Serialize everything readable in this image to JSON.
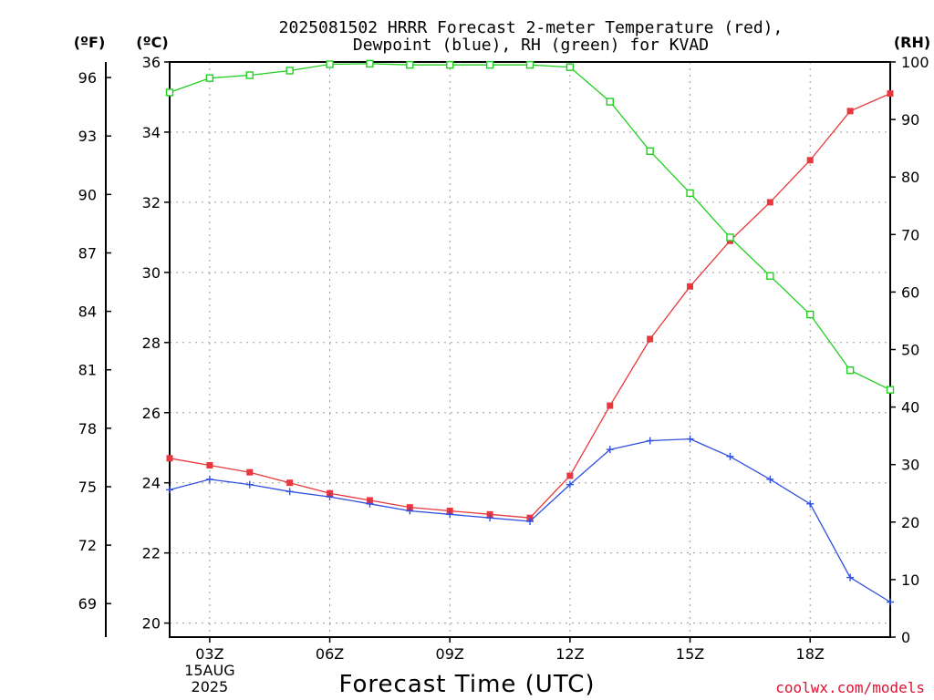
{
  "chart_data": {
    "type": "line",
    "title_line1": "2025081502 HRRR Forecast 2-meter Temperature (red),",
    "title_line2": "Dewpoint (blue), RH (green) for KVAD",
    "xlabel": "Forecast Time (UTC)",
    "credit": "coolwx.com/models",
    "units": {
      "fahrenheit": "(ºF)",
      "celsius": "(ºC)",
      "rh": "(RH)"
    },
    "x_hours": [
      2,
      3,
      4,
      5,
      6,
      7,
      8,
      9,
      10,
      11,
      12,
      13,
      14,
      15,
      16,
      17,
      18,
      19,
      20
    ],
    "x_ticks": [
      {
        "hour": 3,
        "label": "03Z",
        "sub1": "15AUG",
        "sub2": "2025"
      },
      {
        "hour": 6,
        "label": "06Z"
      },
      {
        "hour": 9,
        "label": "09Z"
      },
      {
        "hour": 12,
        "label": "12Z"
      },
      {
        "hour": 15,
        "label": "15Z"
      },
      {
        "hour": 18,
        "label": "18Z"
      }
    ],
    "xlim": [
      2,
      20
    ],
    "celsius_ticks": [
      "20",
      "22",
      "24",
      "26",
      "28",
      "30",
      "32",
      "34",
      "36"
    ],
    "celsius_range": [
      19.6,
      36
    ],
    "fahrenheit_ticks": [
      "69",
      "72",
      "75",
      "78",
      "81",
      "84",
      "87",
      "90",
      "93",
      "96"
    ],
    "rh_ticks": [
      "0",
      "10",
      "20",
      "30",
      "40",
      "50",
      "60",
      "70",
      "80",
      "90",
      "100"
    ],
    "rh_range": [
      0,
      100
    ],
    "series": [
      {
        "key": "temperature",
        "unit": "C",
        "color": "#e8383d",
        "marker": "filled-square",
        "values": [
          24.7,
          24.5,
          24.3,
          24.0,
          23.7,
          23.5,
          23.3,
          23.2,
          23.1,
          23.0,
          24.2,
          26.2,
          28.1,
          29.6,
          30.9,
          32.0,
          33.2,
          34.6,
          35.1
        ]
      },
      {
        "key": "dewpoint",
        "unit": "C",
        "color": "#3050e0",
        "marker": "plus",
        "values": [
          23.8,
          24.1,
          23.95,
          23.75,
          23.6,
          23.4,
          23.2,
          23.1,
          23.0,
          22.9,
          23.95,
          24.95,
          25.2,
          25.25,
          24.75,
          24.1,
          23.4,
          21.3,
          20.6
        ]
      },
      {
        "key": "rh",
        "unit": "%",
        "color": "#20d020",
        "marker": "open-square",
        "values": [
          94.7,
          97.2,
          97.7,
          98.5,
          99.6,
          99.7,
          99.5,
          99.5,
          99.5,
          99.5,
          99.1,
          93.1,
          84.5,
          77.2,
          69.5,
          62.8,
          56.1,
          46.4,
          43.0
        ]
      }
    ]
  }
}
